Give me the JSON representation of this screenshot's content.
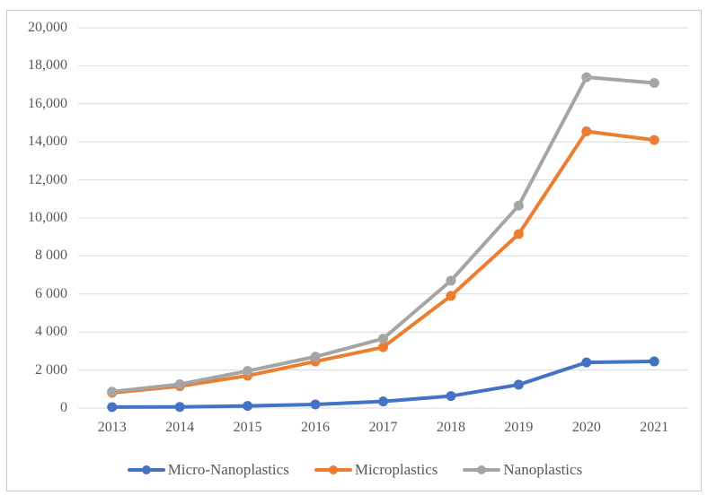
{
  "chart_data": {
    "type": "line",
    "categories": [
      "2013",
      "2014",
      "2015",
      "2016",
      "2017",
      "2018",
      "2019",
      "2020",
      "2021"
    ],
    "series": [
      {
        "name": "Micro-Nanoplastics",
        "color": "#4472C4",
        "values": [
          50,
          60,
          110,
          190,
          350,
          630,
          1230,
          2400,
          2450
        ]
      },
      {
        "name": "Microplastics",
        "color": "#ED7D31",
        "values": [
          800,
          1150,
          1700,
          2450,
          3200,
          5900,
          9150,
          14550,
          14100
        ]
      },
      {
        "name": "Nanoplastics",
        "color": "#A5A5A5",
        "values": [
          860,
          1250,
          1950,
          2700,
          3650,
          6700,
          10650,
          17400,
          17100
        ]
      }
    ],
    "y_ticks": [
      {
        "value": 20000,
        "label": "20,000"
      },
      {
        "value": 18000,
        "label": "18,000"
      },
      {
        "value": 16000,
        "label": "16,000"
      },
      {
        "value": 14000,
        "label": "14,000"
      },
      {
        "value": 12000,
        "label": "12,000"
      },
      {
        "value": 10000,
        "label": "10,000"
      },
      {
        "value": 8000,
        "label": "8 000"
      },
      {
        "value": 6000,
        "label": "6 000"
      },
      {
        "value": 4000,
        "label": "4 000"
      },
      {
        "value": 2000,
        "label": "2 000"
      },
      {
        "value": 0,
        "label": "0"
      }
    ],
    "ylim": [
      0,
      20000
    ],
    "grid": true,
    "legend_position": "bottom"
  },
  "colors": {
    "background": "#FFFFFF",
    "gridline": "#D9D9D9",
    "figure_border": "#C9C9C9",
    "text": "#595959"
  }
}
